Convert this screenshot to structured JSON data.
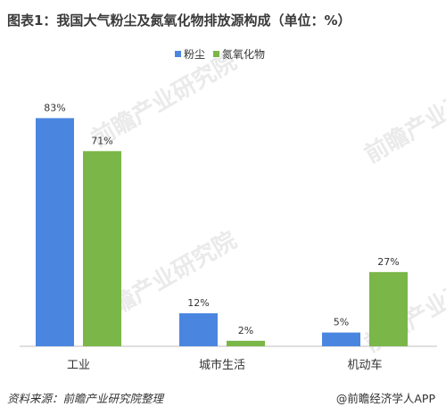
{
  "title": "图表1：我国大气粉尘及氮氧化物排放源构成（单位：%）",
  "source": "资料来源：前瞻产业研究院整理",
  "credit": "@前瞻经济学人APP",
  "watermark": "前瞻产业研究院",
  "colors": {
    "dust": "#4a86e0",
    "nox": "#7ab648",
    "axis": "#bfbfbf"
  },
  "chart_data": {
    "type": "bar",
    "categories": [
      "工业",
      "城市生活",
      "机动车"
    ],
    "series": [
      {
        "name": "粉尘",
        "values": [
          83,
          12,
          5
        ],
        "labels": [
          "83%",
          "12%",
          "5%"
        ]
      },
      {
        "name": "氮氧化物",
        "values": [
          71,
          2,
          27
        ],
        "labels": [
          "71%",
          "2%",
          "27%"
        ]
      }
    ],
    "ylim": [
      0,
      100
    ],
    "legend_position": "top-center",
    "grid": false
  }
}
